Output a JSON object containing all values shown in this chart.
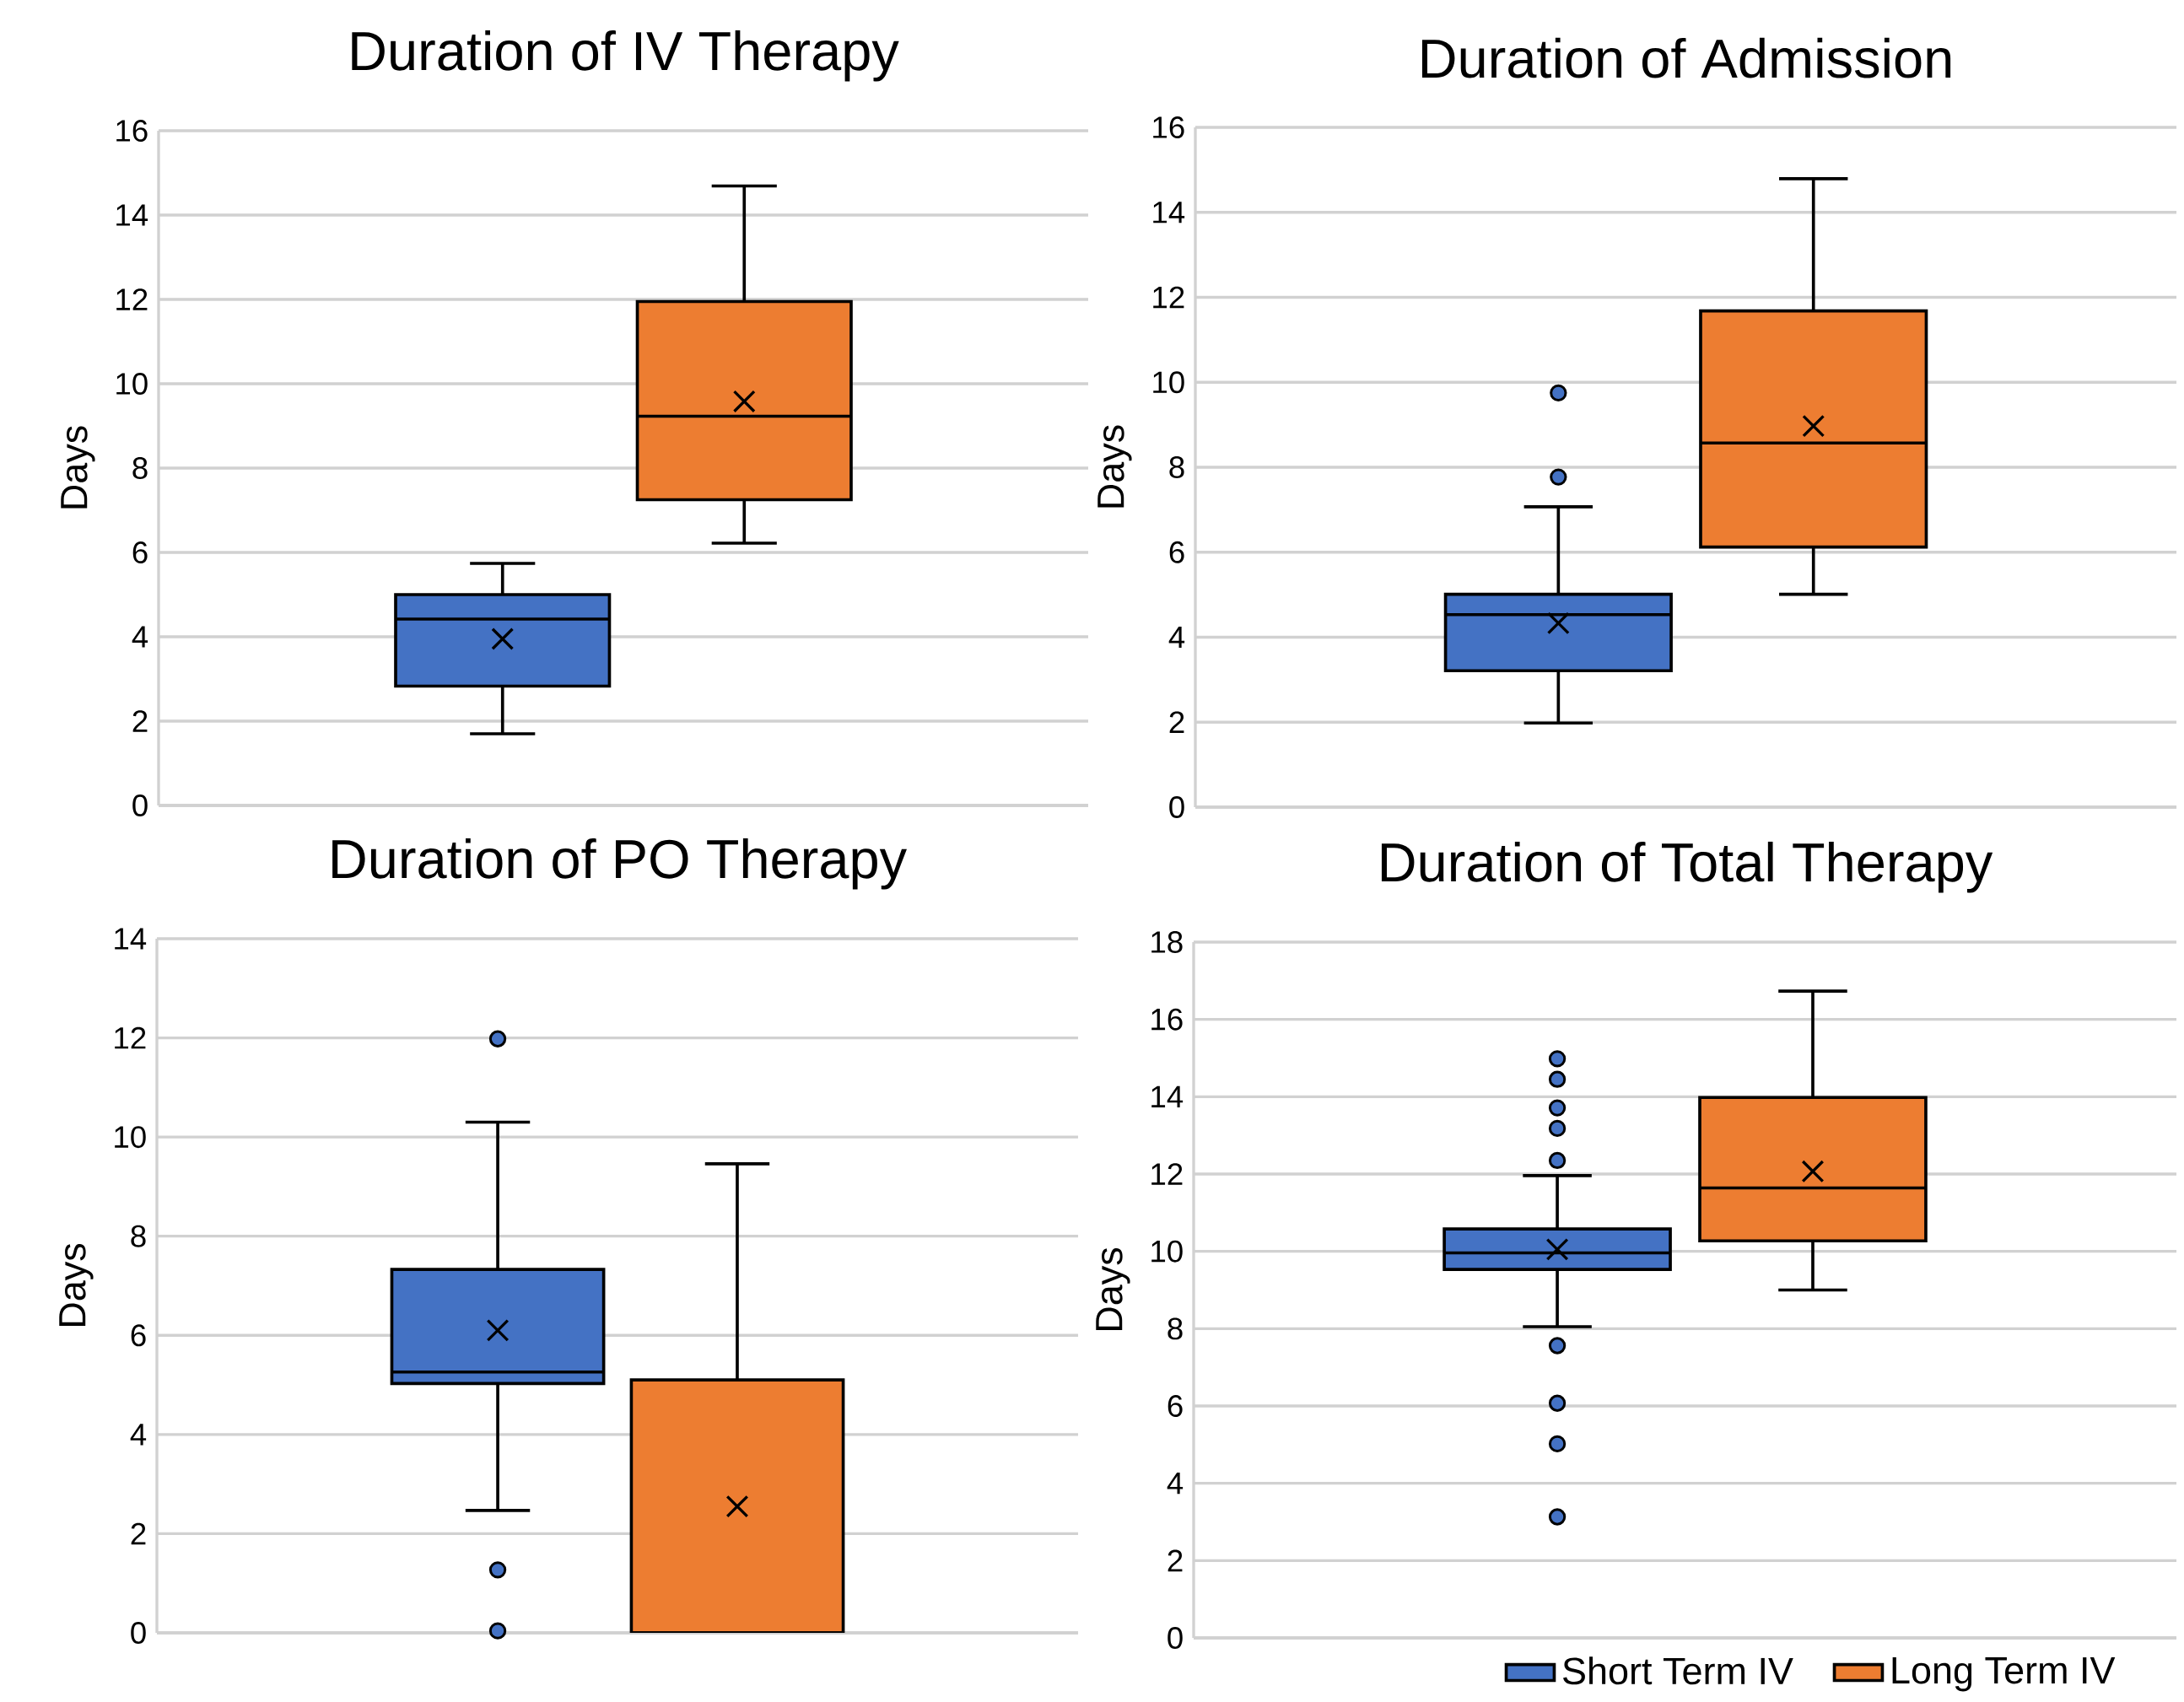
{
  "chart_data": [
    {
      "type": "box",
      "title": "Duration of IV Therapy",
      "ylabel": "Days",
      "categories": [
        null
      ],
      "ylim": [
        0,
        16
      ],
      "yticks": [
        0,
        2,
        4,
        6,
        8,
        10,
        12,
        14,
        16
      ],
      "grid": "y",
      "series": [
        {
          "color": "#4472c4",
          "boxes": [
            {
              "low": 1.7,
              "q1": 2.83,
              "median": 4.42,
              "q3": 5.0,
              "high": 5.74,
              "mean": 3.95
            }
          ]
        },
        {
          "color": "#ed7d31",
          "boxes": [
            {
              "low": 6.22,
              "q1": 7.25,
              "median": 9.23,
              "q3": 11.95,
              "high": 14.69,
              "mean": 9.58
            }
          ]
        }
      ]
    },
    {
      "type": "box",
      "title": "Duration of Admission",
      "ylabel": "Days",
      "categories": [
        null
      ],
      "ylim": [
        0,
        16
      ],
      "yticks": [
        0,
        2,
        4,
        6,
        8,
        10,
        12,
        14,
        16
      ],
      "grid": "y",
      "series": [
        {
          "color": "#4472c4",
          "boxes": [
            {
              "low": 1.98,
              "q1": 3.21,
              "median": 4.53,
              "q3": 5.01,
              "high": 7.07,
              "mean": 4.33,
              "outliers": [
                7.77,
                9.75
              ]
            }
          ]
        },
        {
          "color": "#ed7d31",
          "boxes": [
            {
              "low": 5.01,
              "q1": 6.12,
              "median": 8.57,
              "q3": 11.68,
              "high": 14.79,
              "mean": 8.97
            }
          ]
        }
      ]
    },
    {
      "type": "box",
      "title": "Duration of PO Therapy",
      "ylabel": "Days",
      "categories": [
        null
      ],
      "ylim": [
        0,
        14
      ],
      "yticks": [
        0,
        2,
        4,
        6,
        8,
        10,
        12,
        14
      ],
      "grid": "y",
      "series": [
        {
          "color": "#4472c4",
          "boxes": [
            {
              "low": 2.47,
              "q1": 5.03,
              "median": 5.26,
              "q3": 7.33,
              "high": 10.3,
              "mean": 6.1,
              "outliers": [
                0.04,
                1.27,
                11.98
              ]
            }
          ]
        },
        {
          "color": "#ed7d31",
          "boxes": [
            {
              "low": 0,
              "q1": 0,
              "median": 0,
              "q3": 5.1,
              "high": 9.46,
              "mean": 2.55
            }
          ]
        }
      ]
    },
    {
      "type": "box",
      "title": "Duration of Total Therapy",
      "ylabel": "Days",
      "categories": [
        null
      ],
      "ylim": [
        0,
        18
      ],
      "yticks": [
        0,
        2,
        4,
        6,
        8,
        10,
        12,
        14,
        16,
        18
      ],
      "grid": "y",
      "legend": "bottom",
      "series": [
        {
          "name": "Short Term IV",
          "color": "#4472c4",
          "boxes": [
            {
              "low": 8.05,
              "q1": 9.53,
              "median": 9.96,
              "q3": 10.58,
              "high": 11.96,
              "mean": 10.05,
              "outliers": [
                3.13,
                5.02,
                6.07,
                7.56,
                12.35,
                13.18,
                13.71,
                14.45,
                14.98
              ]
            }
          ]
        },
        {
          "name": "Long Term IV",
          "color": "#ed7d31",
          "boxes": [
            {
              "low": 9.0,
              "q1": 10.27,
              "median": 11.64,
              "q3": 13.98,
              "high": 16.73,
              "mean": 12.07
            }
          ]
        }
      ]
    }
  ]
}
